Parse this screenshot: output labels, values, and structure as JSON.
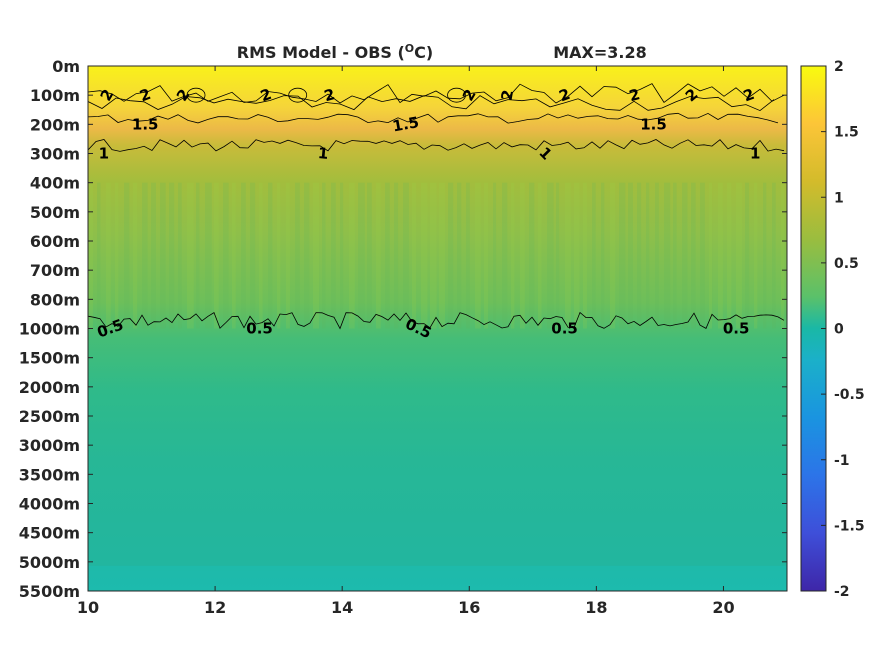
{
  "chart_data": {
    "type": "heatmap",
    "title": "RMS Model - OBS (",
    "title_superscript": "O",
    "title_unit": "C)",
    "max_label": "MAX=3.28",
    "x_ticks": [
      10,
      12,
      14,
      16,
      18,
      20
    ],
    "xlim": [
      10,
      21
    ],
    "y_tick_labels": [
      "0m",
      "100m",
      "200m",
      "300m",
      "400m",
      "500m",
      "600m",
      "700m",
      "800m",
      "1000m",
      "1500m",
      "2000m",
      "2500m",
      "3000m",
      "3500m",
      "4000m",
      "4500m",
      "5000m",
      "5500m"
    ],
    "colorbar": {
      "ticks": [
        "2",
        "1.5",
        "1",
        "0.5",
        "0",
        "-0.5",
        "-1",
        "-1.5",
        "-2"
      ],
      "range": [
        -2,
        2
      ],
      "colormap": "parula"
    },
    "depth_profile": {
      "levels": [
        "0m",
        "100m",
        "200m",
        "300m",
        "400m",
        "500m",
        "600m",
        "700m",
        "800m",
        "1000m",
        "1500m",
        "2000m",
        "2500m",
        "3000m",
        "3500m",
        "4000m",
        "4500m",
        "5000m",
        "5500m"
      ],
      "values": [
        2.1,
        1.9,
        1.5,
        1.0,
        0.85,
        0.78,
        0.75,
        0.73,
        0.65,
        0.5,
        0.38,
        0.3,
        0.27,
        0.25,
        0.25,
        0.24,
        0.24,
        0.22,
        0.2
      ]
    },
    "contour_labels": [
      {
        "text": "2",
        "x": 10.3,
        "level": "100m",
        "rot": -60
      },
      {
        "text": "2",
        "x": 10.9,
        "level": "100m",
        "rot": -20
      },
      {
        "text": "2",
        "x": 11.5,
        "level": "100m",
        "rot": -55
      },
      {
        "text": "2",
        "x": 12.8,
        "level": "100m",
        "rot": -20
      },
      {
        "text": "2",
        "x": 13.8,
        "level": "100m",
        "rot": -15
      },
      {
        "text": "2",
        "x": 16.0,
        "level": "100m",
        "rot": -60
      },
      {
        "text": "2",
        "x": 16.6,
        "level": "100m",
        "rot": -80
      },
      {
        "text": "2",
        "x": 17.5,
        "level": "100m",
        "rot": -20
      },
      {
        "text": "2",
        "x": 18.6,
        "level": "100m",
        "rot": -15
      },
      {
        "text": "2",
        "x": 19.5,
        "level": "100m",
        "rot": -40
      },
      {
        "text": "2",
        "x": 20.4,
        "level": "100m",
        "rot": -20
      },
      {
        "text": "1.5",
        "x": 10.9,
        "level": "200m",
        "rot": 0
      },
      {
        "text": "1.5",
        "x": 15.0,
        "level": "200m",
        "rot": -10
      },
      {
        "text": "1.5",
        "x": 18.9,
        "level": "200m",
        "rot": 0
      },
      {
        "text": "1",
        "x": 10.25,
        "level": "300m",
        "rot": 0
      },
      {
        "text": "1",
        "x": 13.7,
        "level": "300m",
        "rot": 5
      },
      {
        "text": "1",
        "x": 17.2,
        "level": "300m",
        "rot": 45
      },
      {
        "text": "1",
        "x": 20.5,
        "level": "300m",
        "rot": 0
      },
      {
        "text": "0.5",
        "x": 10.35,
        "level": "1000m",
        "rot": -20
      },
      {
        "text": "0.5",
        "x": 12.7,
        "level": "1000m",
        "rot": 0
      },
      {
        "text": "0.5",
        "x": 15.2,
        "level": "1000m",
        "rot": 25
      },
      {
        "text": "0.5",
        "x": 17.5,
        "level": "1000m",
        "rot": 0
      },
      {
        "text": "0.5",
        "x": 20.2,
        "level": "1000m",
        "rot": 0
      }
    ]
  }
}
